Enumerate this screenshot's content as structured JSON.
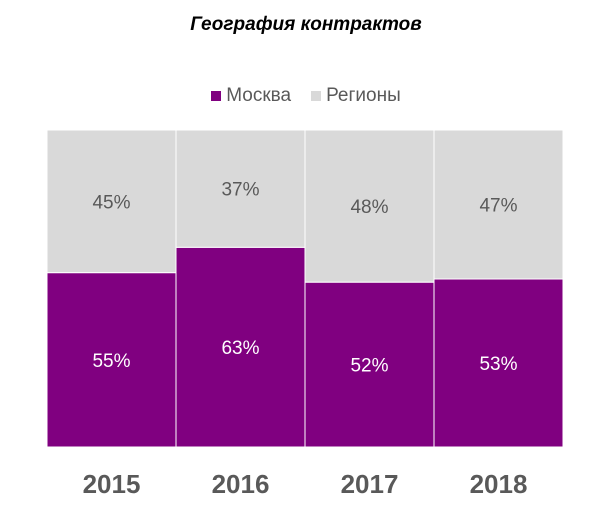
{
  "chart_data": {
    "type": "bar",
    "stacked": true,
    "percent": true,
    "title": "География контрактов",
    "categories": [
      "2015",
      "2016",
      "2017",
      "2018"
    ],
    "series": [
      {
        "name": "Москва",
        "values": [
          55,
          63,
          52,
          53
        ],
        "color": "#800080",
        "labels": [
          "55%",
          "63%",
          "52%",
          "53%"
        ]
      },
      {
        "name": "Регионы",
        "values": [
          45,
          37,
          48,
          47
        ],
        "color": "#d9d9d9",
        "labels": [
          "45%",
          "37%",
          "48%",
          "47%"
        ]
      }
    ],
    "ylim": [
      0,
      100
    ],
    "legend": "top-center",
    "grid": false
  }
}
